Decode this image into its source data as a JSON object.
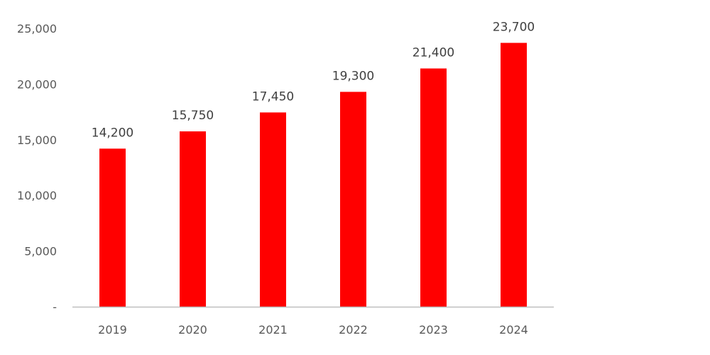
{
  "chart_data": {
    "type": "bar",
    "title": "",
    "xlabel": "",
    "ylabel": "",
    "categories": [
      "2019",
      "2020",
      "2021",
      "2022",
      "2023",
      "2024"
    ],
    "values": [
      14200,
      15750,
      17450,
      19300,
      21400,
      23700
    ],
    "data_labels": [
      "14,200",
      "15,750",
      "17,450",
      "19,300",
      "21,400",
      "23,700"
    ],
    "ylim": [
      0,
      25000
    ],
    "yticks": [
      0,
      5000,
      10000,
      15000,
      20000,
      25000
    ],
    "ytick_labels": [
      "-",
      "5,000",
      "10,000",
      "15,000",
      "20,000",
      "25,000"
    ],
    "grid": false,
    "legend": "none",
    "colors": {
      "bar": "#ff0000",
      "axis": "#bfbfbf",
      "text": "#595959"
    }
  }
}
